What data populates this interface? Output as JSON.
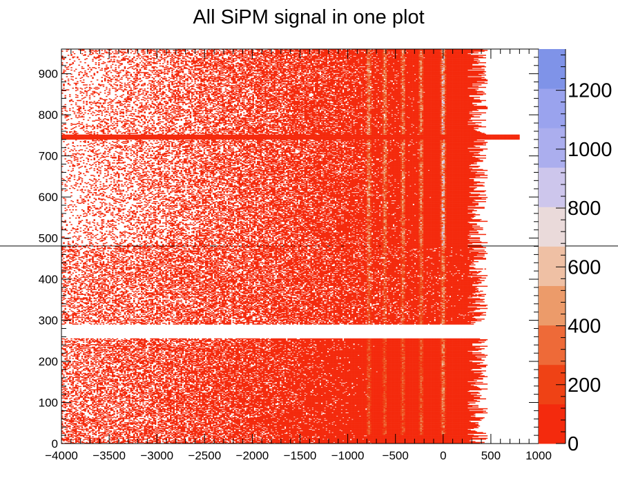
{
  "chart_data": {
    "type": "heatmap",
    "title": "All SiPM signal in one plot",
    "xlabel": "",
    "ylabel": "",
    "xlim": [
      -4000,
      1000
    ],
    "ylim": [
      0,
      960
    ],
    "x_ticks": [
      "−4000",
      "−3500",
      "−3000",
      "−2500",
      "−2000",
      "−1500",
      "−1000",
      "−500",
      "0",
      "500",
      "1000"
    ],
    "y_ticks": [
      "0",
      "100",
      "200",
      "300",
      "400",
      "500",
      "600",
      "700",
      "800",
      "900"
    ],
    "z_ticks": [
      "0",
      "200",
      "400",
      "600",
      "800",
      "1000",
      "1200"
    ],
    "zlim": [
      0,
      1340
    ],
    "palette": [
      "#f42a0d",
      "#ef4215",
      "#ee6a38",
      "#ec9b6a",
      "#efc0a4",
      "#eadada",
      "#cdc6ec",
      "#abaeee",
      "#9aa3ee",
      "#7f93e8"
    ],
    "empty_y_band": [
      290,
      256
    ],
    "full_row_y": 745,
    "peak_x_positions": [
      0,
      -230,
      -420,
      -610,
      -780
    ],
    "grid": false,
    "legend": "none"
  }
}
